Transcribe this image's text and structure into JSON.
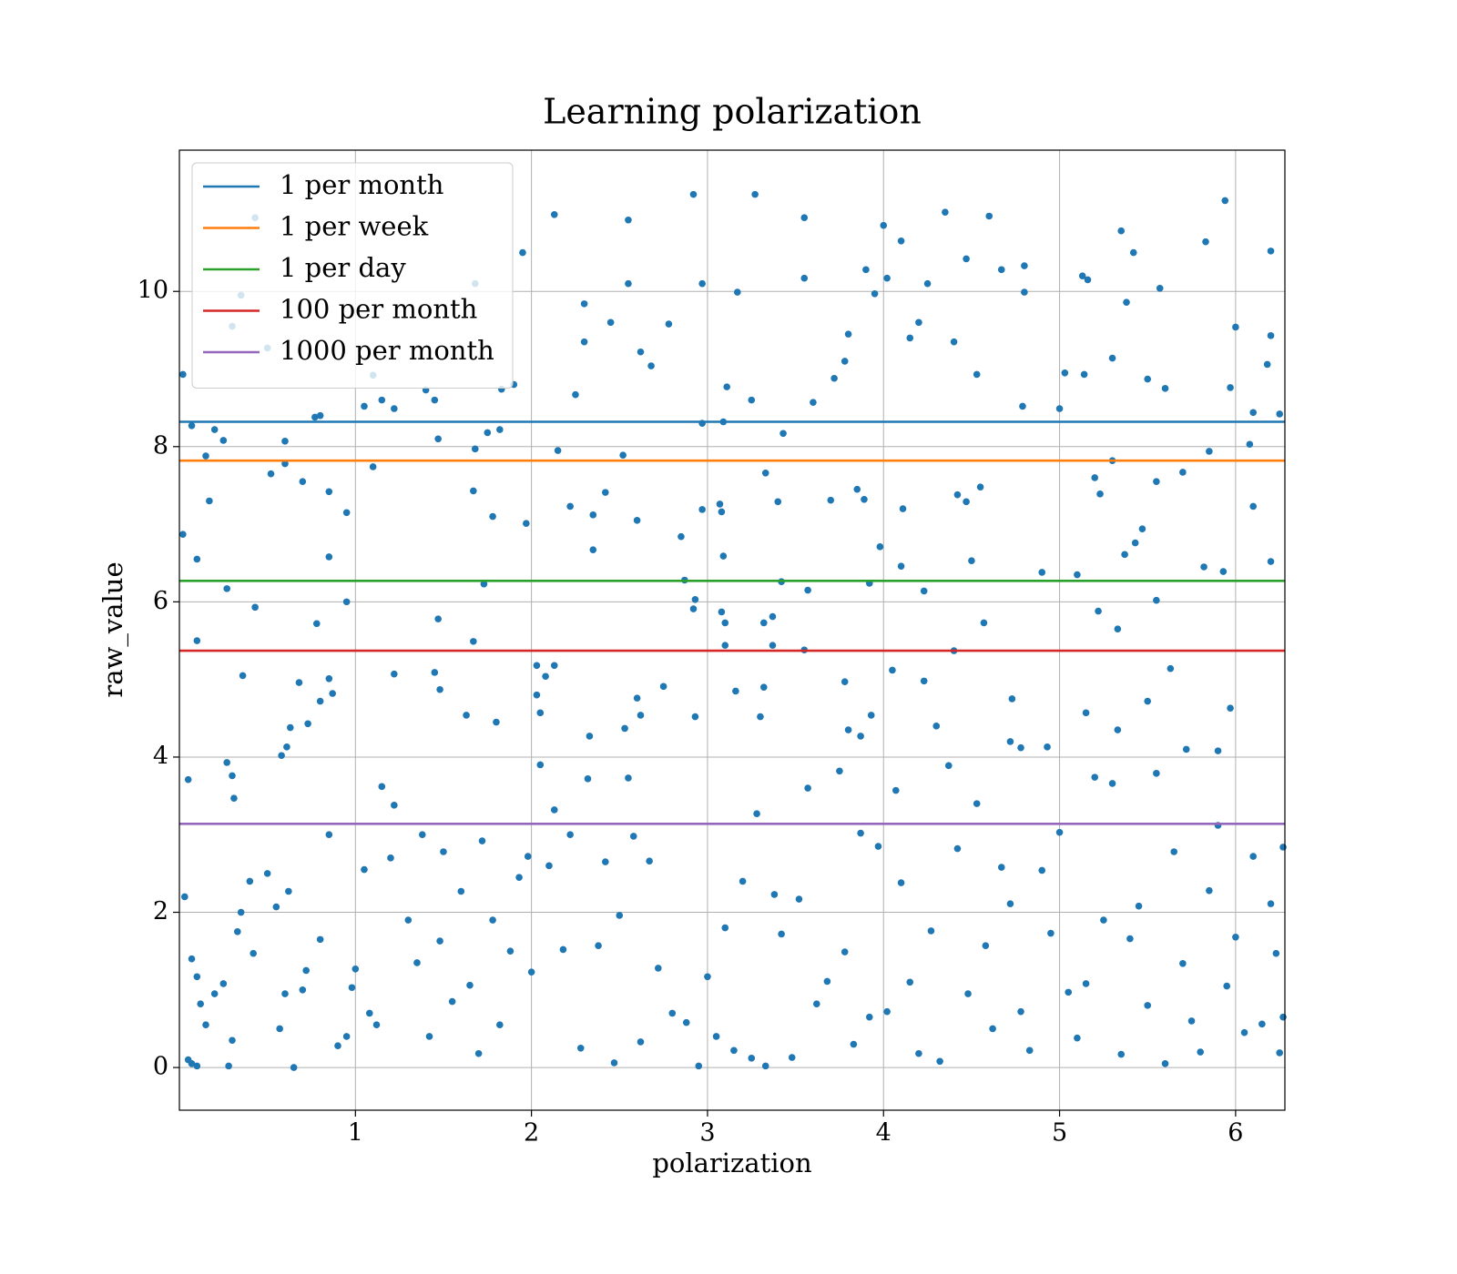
{
  "chart_data": {
    "type": "scatter",
    "title": "Learning polarization",
    "xlabel": "polarization",
    "ylabel": "raw_value",
    "xlim": [
      0,
      6.28
    ],
    "ylim": [
      -0.55,
      11.82
    ],
    "xticks": [
      1,
      2,
      3,
      4,
      5,
      6
    ],
    "yticks": [
      0,
      2,
      4,
      6,
      8,
      10
    ],
    "grid": true,
    "legend": "upper left",
    "color": "#1f77b4",
    "lines": [
      {
        "name": "1 per month",
        "color": "#1f77b4",
        "value": 8.32
      },
      {
        "name": "1 per week",
        "color": "#ff7f0e",
        "value": 7.82
      },
      {
        "name": "1 per day",
        "color": "#2ca02c",
        "value": 6.27
      },
      {
        "name": "100 per month",
        "color": "#d62728",
        "value": 5.37
      },
      {
        "name": "1000 per month",
        "color": "#9467bd",
        "value": 3.14
      }
    ],
    "x": [
      0.02,
      0.07,
      0.15,
      0.17,
      0.1,
      0.1,
      0.02,
      0.2,
      0.25,
      0.35,
      0.3,
      0.43,
      0.5,
      0.6,
      0.6,
      0.52,
      0.7,
      0.77,
      0.8,
      0.85,
      0.85,
      0.95,
      0.95,
      0.78,
      0.85,
      1.05,
      1.1,
      1.15,
      1.22,
      1.1,
      1.4,
      1.45,
      1.47,
      1.68,
      1.68,
      1.67,
      1.75,
      1.82,
      1.83,
      1.9,
      1.95,
      1.97,
      2.13,
      2.15,
      2.25,
      2.3,
      2.3,
      2.35,
      2.42,
      2.45,
      2.55,
      2.55,
      2.62,
      2.68,
      2.52,
      2.78,
      2.85,
      2.92,
      2.97,
      2.97,
      3.07,
      3.09,
      3.11,
      3.17,
      3.27,
      3.25,
      3.33,
      3.43,
      3.4,
      3.55,
      3.55,
      3.6,
      3.72,
      3.78,
      3.8,
      3.9,
      3.95,
      4.0,
      4.02,
      4.1,
      4.15,
      4.2,
      4.25,
      4.35,
      4.4,
      4.47,
      4.53,
      4.6,
      4.67,
      4.8,
      4.8,
      4.79,
      5.0,
      5.03,
      5.13,
      5.16,
      5.14,
      5.3,
      5.35,
      5.42,
      5.38,
      5.57,
      5.5,
      5.6,
      5.83,
      5.94,
      6.0,
      6.2,
      6.2,
      6.18,
      6.1,
      6.25,
      5.97,
      6.08,
      6.1,
      6.2,
      5.93,
      5.82,
      5.85,
      5.7,
      5.55,
      5.47,
      5.3,
      5.23,
      5.2,
      5.37,
      5.43,
      5.1,
      4.9,
      5.22,
      5.33,
      5.55,
      4.57,
      4.4,
      4.55,
      4.47,
      4.42,
      4.5,
      4.11,
      4.1,
      4.23,
      3.98,
      3.92,
      3.85,
      3.89,
      3.7,
      3.57,
      3.55,
      3.42,
      3.37,
      3.32,
      3.37,
      3.08,
      3.1,
      3.1,
      2.93,
      2.92,
      2.87,
      2.97,
      3.08,
      3.09,
      3.16,
      3.32,
      2.6,
      2.35,
      2.22,
      1.78,
      1.73,
      1.67,
      1.47,
      0.43,
      0.27,
      0.63,
      0.61,
      0.58,
      0.73,
      0.68,
      0.8,
      0.87,
      0.36,
      0.27,
      0.3,
      0.31,
      0.05,
      1.22,
      1.45,
      1.48,
      1.63,
      1.8,
      2.03,
      2.13,
      2.08,
      2.03,
      2.05,
      2.6,
      2.62,
      2.75,
      2.33,
      2.53,
      2.93,
      3.3,
      3.78,
      3.8,
      3.87,
      3.93,
      4.05,
      4.23,
      4.3,
      4.73,
      4.78,
      4.72,
      4.93,
      5.15,
      5.33,
      5.5,
      5.63,
      5.72,
      5.97,
      5.9,
      0.03,
      0.07,
      0.1,
      0.12,
      0.15,
      0.05,
      0.07,
      0.1,
      0.2,
      0.25,
      0.28,
      0.3,
      0.33,
      0.35,
      0.4,
      0.42,
      0.5,
      0.55,
      0.57,
      0.6,
      0.62,
      0.65,
      0.7,
      0.72,
      0.8,
      0.85,
      0.9,
      0.95,
      0.98,
      1.0,
      1.05,
      1.08,
      1.12,
      1.15,
      1.2,
      1.22,
      1.3,
      1.35,
      1.38,
      1.42,
      1.48,
      1.5,
      1.55,
      1.6,
      1.65,
      1.7,
      1.72,
      1.78,
      1.82,
      1.88,
      1.93,
      1.98,
      2.0,
      2.05,
      2.1,
      2.13,
      2.18,
      2.22,
      2.28,
      2.32,
      2.38,
      2.42,
      2.47,
      2.5,
      2.55,
      2.58,
      2.62,
      2.67,
      2.72,
      2.8,
      2.88,
      2.95,
      3.0,
      3.05,
      3.1,
      3.15,
      3.2,
      3.25,
      3.28,
      3.33,
      3.38,
      3.42,
      3.48,
      3.52,
      3.57,
      3.62,
      3.68,
      3.75,
      3.78,
      3.83,
      3.87,
      3.92,
      3.97,
      4.02,
      4.07,
      4.1,
      4.15,
      4.2,
      4.27,
      4.32,
      4.37,
      4.42,
      4.48,
      4.53,
      4.58,
      4.62,
      4.67,
      4.72,
      4.78,
      4.83,
      4.9,
      4.95,
      5.0,
      5.05,
      5.1,
      5.15,
      5.2,
      5.25,
      5.3,
      5.35,
      5.4,
      5.45,
      5.5,
      5.55,
      5.6,
      5.65,
      5.7,
      5.75,
      5.8,
      5.85,
      5.9,
      5.95,
      6.0,
      6.05,
      6.1,
      6.15,
      6.2,
      6.25,
      6.27,
      6.23,
      6.27
    ],
    "values": [
      8.93,
      8.27,
      7.88,
      7.3,
      6.55,
      5.5,
      6.87,
      8.22,
      8.08,
      9.95,
      9.55,
      10.95,
      9.27,
      7.78,
      8.07,
      7.65,
      7.55,
      8.38,
      8.4,
      7.42,
      6.58,
      7.15,
      6.0,
      5.72,
      5.01,
      8.52,
      8.92,
      8.6,
      8.49,
      7.74,
      8.73,
      8.6,
      8.1,
      10.1,
      7.97,
      7.43,
      8.18,
      8.22,
      8.74,
      8.8,
      10.5,
      7.01,
      10.99,
      7.95,
      8.67,
      9.84,
      9.35,
      7.12,
      7.41,
      9.6,
      10.92,
      10.1,
      9.22,
      9.04,
      7.89,
      9.58,
      6.84,
      11.25,
      10.1,
      8.3,
      7.26,
      8.32,
      8.77,
      9.99,
      11.25,
      8.6,
      7.66,
      8.17,
      7.29,
      10.95,
      10.17,
      8.57,
      8.88,
      9.1,
      9.45,
      10.28,
      9.97,
      10.85,
      10.17,
      10.65,
      9.4,
      9.6,
      10.1,
      11.02,
      9.35,
      10.42,
      8.93,
      10.97,
      10.28,
      10.33,
      9.99,
      8.52,
      8.49,
      8.95,
      10.2,
      10.15,
      8.93,
      9.14,
      10.78,
      10.5,
      9.86,
      10.04,
      8.87,
      8.75,
      10.64,
      11.17,
      9.54,
      10.52,
      9.43,
      9.06,
      8.44,
      8.42,
      8.76,
      8.03,
      7.23,
      6.52,
      6.39,
      6.45,
      7.94,
      7.67,
      7.55,
      6.94,
      7.82,
      7.39,
      7.6,
      6.61,
      6.76,
      6.35,
      6.38,
      5.88,
      5.65,
      6.02,
      5.73,
      5.37,
      7.48,
      7.29,
      7.38,
      6.53,
      7.2,
      6.46,
      6.14,
      6.71,
      6.24,
      7.45,
      7.32,
      7.31,
      6.15,
      5.38,
      6.26,
      5.81,
      5.73,
      5.44,
      5.87,
      5.73,
      5.44,
      6.03,
      5.91,
      6.28,
      7.19,
      7.16,
      6.59,
      4.85,
      4.9,
      7.05,
      6.67,
      7.23,
      7.1,
      6.23,
      5.49,
      5.78,
      5.93,
      6.17,
      4.38,
      4.13,
      4.02,
      4.43,
      4.96,
      4.72,
      4.82,
      5.05,
      3.93,
      3.76,
      3.47,
      3.71,
      5.07,
      5.09,
      4.87,
      4.54,
      4.45,
      5.18,
      5.18,
      5.04,
      4.8,
      4.57,
      4.76,
      4.54,
      4.91,
      4.27,
      4.37,
      4.52,
      4.52,
      4.97,
      4.35,
      4.27,
      4.54,
      5.12,
      4.98,
      4.4,
      4.75,
      4.12,
      4.2,
      4.13,
      4.57,
      4.35,
      4.72,
      5.14,
      4.1,
      4.63,
      4.08,
      2.2,
      1.4,
      1.17,
      0.82,
      0.55,
      0.1,
      0.05,
      0.02,
      0.95,
      1.08,
      0.02,
      0.35,
      1.75,
      2.0,
      2.4,
      1.47,
      2.5,
      2.07,
      0.5,
      0.95,
      2.27,
      0.0,
      1.0,
      1.25,
      1.65,
      3.0,
      0.28,
      0.4,
      1.03,
      1.27,
      2.55,
      0.7,
      0.55,
      3.62,
      2.7,
      3.38,
      1.9,
      1.35,
      3.0,
      0.4,
      1.63,
      2.78,
      0.85,
      2.27,
      1.06,
      0.18,
      2.92,
      1.9,
      0.55,
      1.5,
      2.45,
      2.72,
      1.23,
      3.9,
      2.6,
      3.32,
      1.52,
      3.0,
      0.25,
      3.72,
      1.57,
      2.65,
      0.06,
      1.96,
      3.73,
      2.98,
      0.33,
      2.66,
      1.28,
      0.7,
      0.58,
      0.02,
      1.17,
      0.4,
      1.8,
      0.22,
      2.4,
      0.12,
      3.27,
      0.02,
      2.23,
      1.72,
      0.13,
      2.17,
      3.6,
      0.82,
      1.11,
      3.82,
      1.49,
      0.3,
      3.02,
      0.65,
      2.85,
      0.72,
      3.57,
      2.38,
      1.1,
      0.18,
      1.76,
      0.08,
      3.89,
      2.82,
      0.95,
      3.4,
      1.57,
      0.5,
      2.58,
      2.11,
      0.72,
      0.22,
      2.54,
      1.73,
      3.03,
      0.97,
      0.38,
      1.08,
      3.74,
      1.9,
      3.66,
      0.17,
      1.66,
      2.08,
      0.8,
      3.79,
      0.05,
      2.78,
      1.34,
      0.6,
      0.2,
      2.28,
      3.12,
      1.05,
      1.68,
      0.45,
      2.72,
      0.56,
      2.11,
      0.19,
      0.65,
      1.47,
      2.84
    ]
  }
}
